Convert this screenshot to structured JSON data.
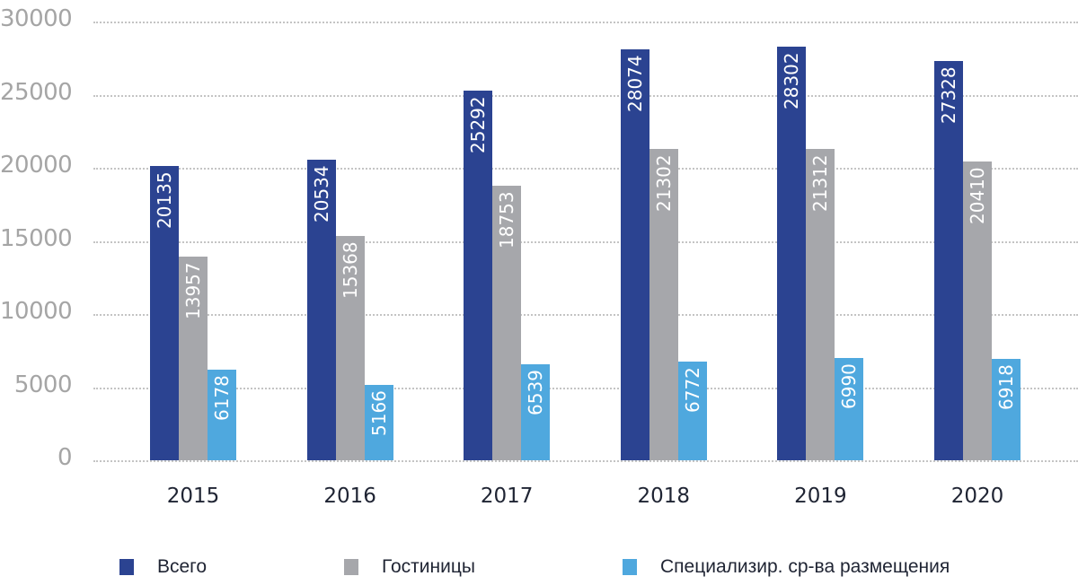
{
  "chart_data": {
    "type": "bar",
    "title": "",
    "xlabel": "",
    "ylabel": "",
    "categories": [
      "2015",
      "2016",
      "2017",
      "2018",
      "2019",
      "2020"
    ],
    "series": [
      {
        "name": "Всего",
        "color": "#2b4391",
        "values": [
          20135,
          20534,
          25292,
          28074,
          28302,
          27328
        ]
      },
      {
        "name": "Гостиницы",
        "color": "#a6a7ab",
        "values": [
          13957,
          15368,
          18753,
          21302,
          21312,
          20410
        ]
      },
      {
        "name": "Специализир. ср-ва размещения",
        "color": "#4fa8de",
        "values": [
          6178,
          5166,
          6539,
          6772,
          6990,
          6918
        ]
      }
    ],
    "ylim": [
      0,
      30000
    ],
    "yticks": [
      "30000",
      "25000",
      "20000",
      "15000",
      "10000",
      "5000",
      "0"
    ],
    "grid": true,
    "grid_style": "dotted horizontal",
    "data_labels": "vertical, inside bars",
    "legend_position": "bottom"
  }
}
